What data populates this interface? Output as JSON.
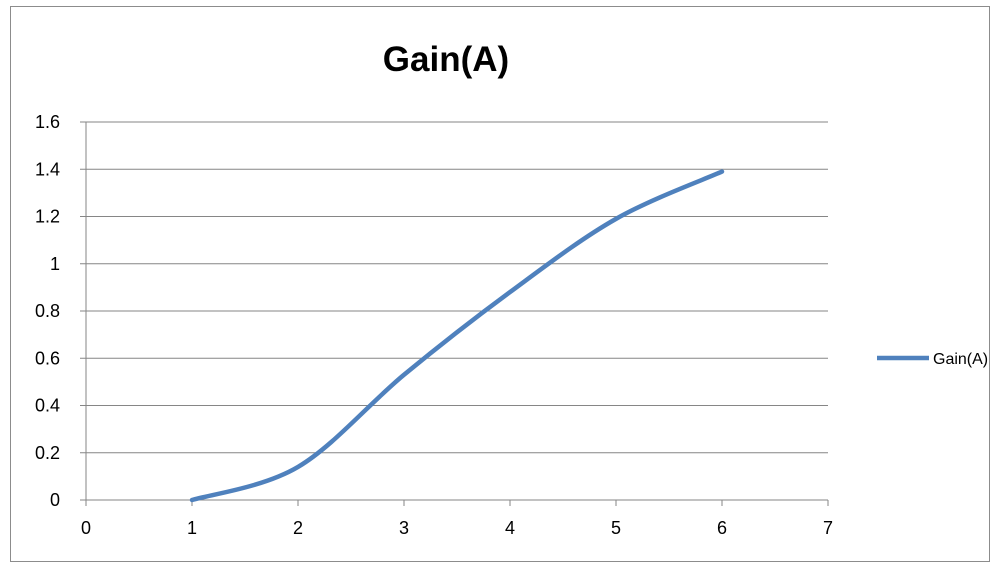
{
  "chart_data": {
    "type": "line",
    "title": "Gain(A)",
    "xlabel": "",
    "ylabel": "",
    "xlim": [
      0,
      7
    ],
    "ylim": [
      0,
      1.6
    ],
    "x_ticks": [
      "0",
      "1",
      "2",
      "3",
      "4",
      "5",
      "6",
      "7"
    ],
    "y_ticks": [
      "0",
      "0.2",
      "0.4",
      "0.6",
      "0.8",
      "1",
      "1.2",
      "1.4",
      "1.6"
    ],
    "grid": "horizontal",
    "legend_position": "right",
    "series": [
      {
        "name": "Gain(A)",
        "color": "#4f81bd",
        "smooth": true,
        "x": [
          1,
          2,
          3,
          4,
          5,
          6
        ],
        "y": [
          0.0,
          0.14,
          0.53,
          0.88,
          1.19,
          1.39
        ]
      }
    ]
  }
}
